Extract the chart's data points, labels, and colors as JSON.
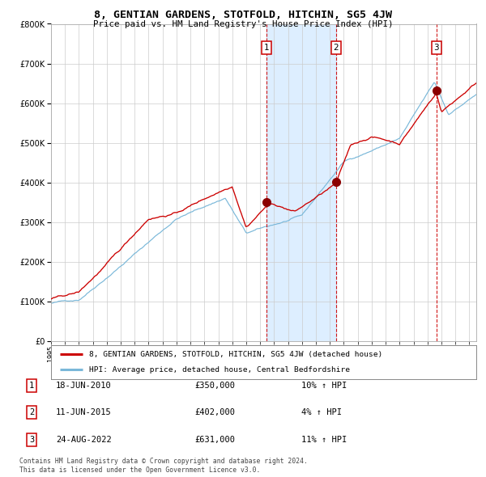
{
  "title": "8, GENTIAN GARDENS, STOTFOLD, HITCHIN, SG5 4JW",
  "subtitle": "Price paid vs. HM Land Registry's House Price Index (HPI)",
  "legend_line1": "8, GENTIAN GARDENS, STOTFOLD, HITCHIN, SG5 4JW (detached house)",
  "legend_line2": "HPI: Average price, detached house, Central Bedfordshire",
  "footer1": "Contains HM Land Registry data © Crown copyright and database right 2024.",
  "footer2": "This data is licensed under the Open Government Licence v3.0.",
  "sales": [
    {
      "label": "1",
      "date": "18-JUN-2010",
      "price": 350000,
      "hpi_pct": "10%",
      "x_year": 2010.46
    },
    {
      "label": "2",
      "date": "11-JUN-2015",
      "price": 402000,
      "hpi_pct": "4%",
      "x_year": 2015.44
    },
    {
      "label": "3",
      "date": "24-AUG-2022",
      "price": 631000,
      "hpi_pct": "11%",
      "x_year": 2022.65
    }
  ],
  "hpi_color": "#7ab8d9",
  "price_color": "#cc0000",
  "shade_color": "#ddeeff",
  "dashed_color": "#cc0000",
  "ylim": [
    0,
    800000
  ],
  "xlim_start": 1995.0,
  "xlim_end": 2025.5,
  "background_color": "#ffffff",
  "grid_color": "#cccccc",
  "sale_prices": [
    350000,
    402000,
    631000
  ]
}
